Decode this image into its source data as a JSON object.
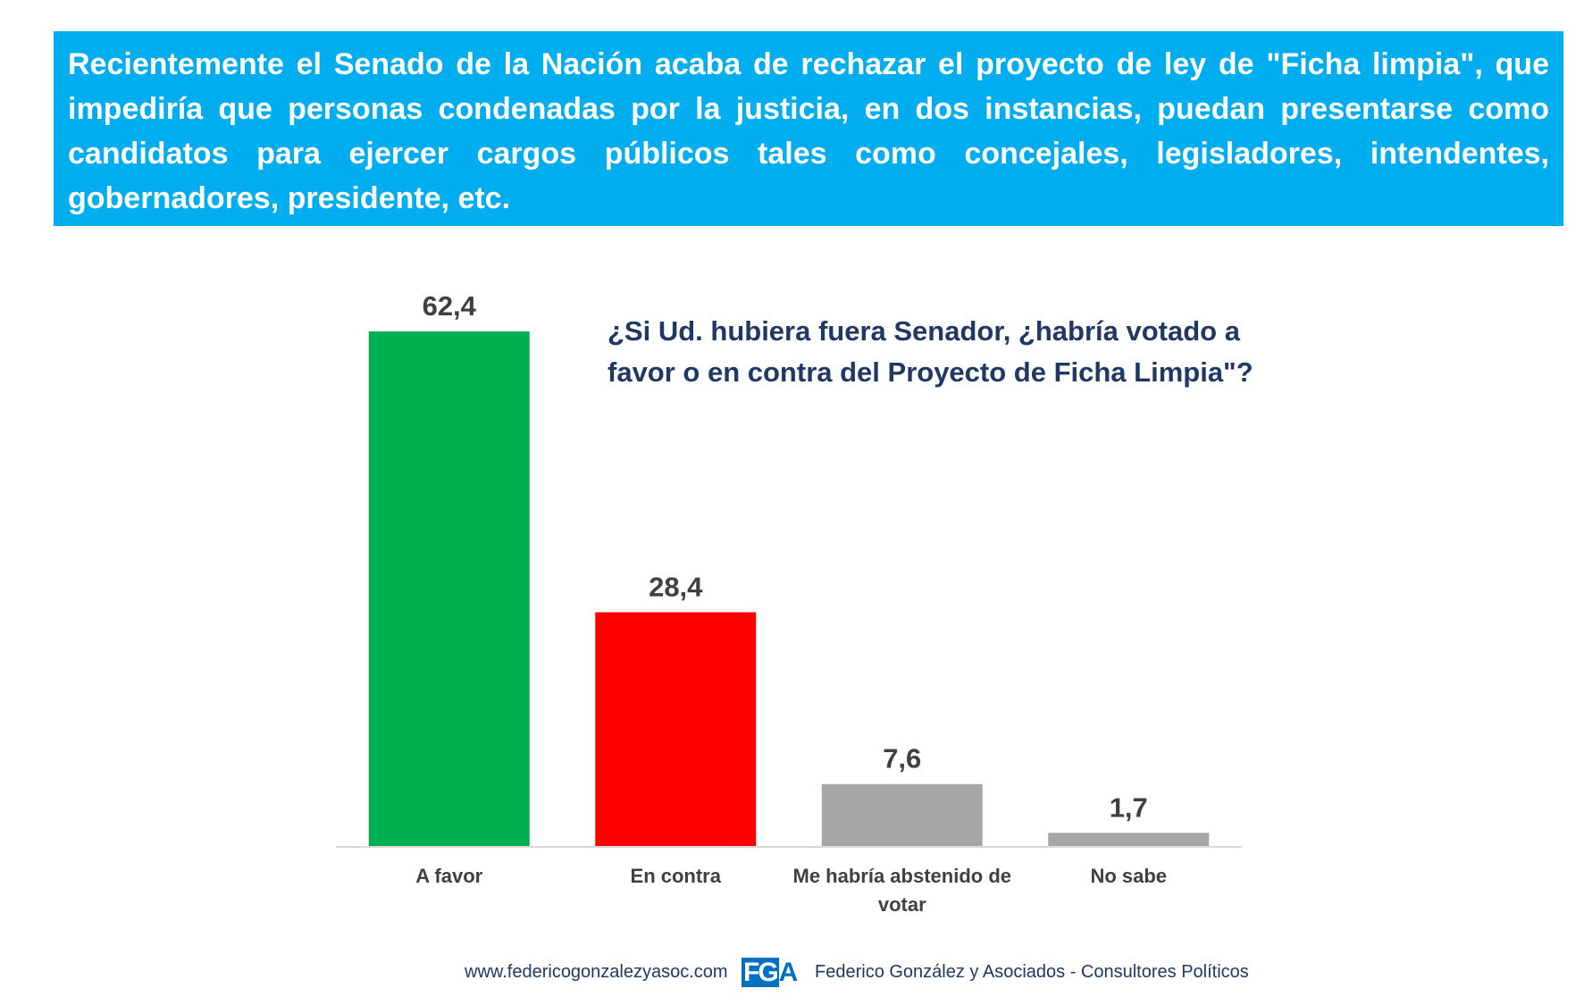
{
  "header": {
    "text": "Recientemente el Senado de la Nación acaba de rechazar el proyecto de ley de \"Ficha limpia\", que impediría que personas condenadas por la justicia, en dos instancias, puedan presentarse como candidatos para ejercer cargos públicos tales como concejales, legisladores, intendentes, gobernadores, presidente, etc."
  },
  "question": "¿Si Ud. hubiera fuera Senador, ¿habría votado a favor o en contra del Proyecto de Ficha Limpia\"?",
  "chart_data": {
    "type": "bar",
    "title": "",
    "xlabel": "",
    "ylabel": "",
    "ylim": [
      0,
      62.4
    ],
    "grid": false,
    "categories": [
      "A favor",
      "En contra",
      "Me habría abstenido de votar",
      "No sabe"
    ],
    "category_lines": [
      [
        "A favor"
      ],
      [
        "En contra"
      ],
      [
        "Me habría abstenido de",
        "votar"
      ],
      [
        "No sabe"
      ]
    ],
    "values": [
      62.4,
      28.4,
      7.6,
      1.7
    ],
    "value_labels": [
      "62,4",
      "28,4",
      "7,6",
      "1,7"
    ],
    "colors": [
      "#00B050",
      "#FF0000",
      "#A6A6A6",
      "#A6A6A6"
    ]
  },
  "footer": {
    "url": "www.federicogonzalezyasoc.com",
    "logo_left": "FG",
    "logo_right": "A",
    "company": "Federico González y Asociados - Consultores Políticos"
  },
  "colors": {
    "header_bg": "#00AEEF",
    "question_text": "#1F3864",
    "label_text": "#404040",
    "axis": "#D9D9D9"
  }
}
